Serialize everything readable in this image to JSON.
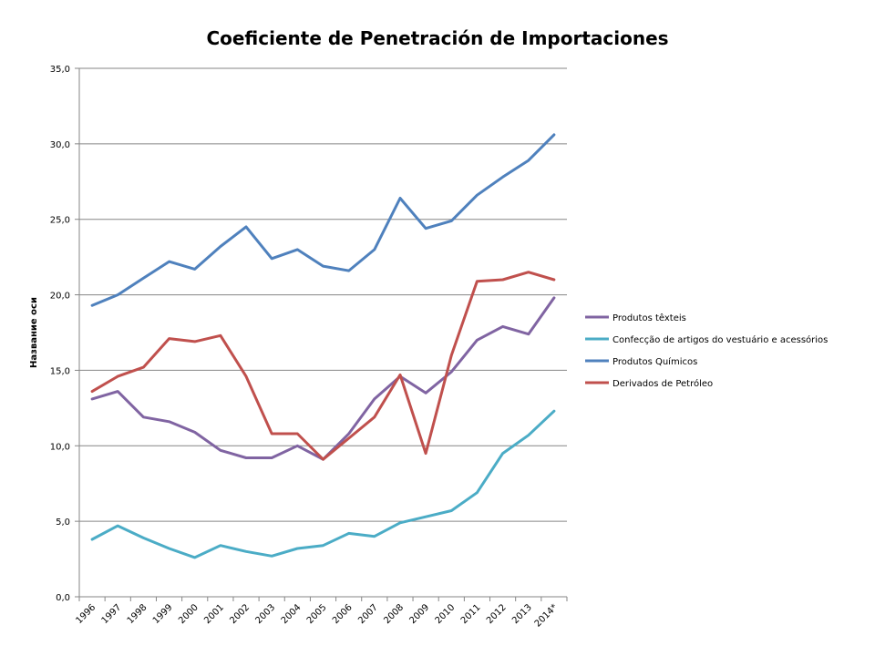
{
  "chart_data": {
    "type": "line",
    "title": "Coeficiente de Penetración de Importaciones",
    "xlabel": "",
    "ylabel": "Название оси",
    "ylim": [
      0,
      35
    ],
    "yticks": [
      "0,0",
      "5,0",
      "10,0",
      "15,0",
      "20,0",
      "25,0",
      "30,0",
      "35,0"
    ],
    "grid": true,
    "legend_position": "right",
    "categories": [
      "1996",
      "1997",
      "1998",
      "1999",
      "2000",
      "2001",
      "2002",
      "2003",
      "2004",
      "2005",
      "2006",
      "2007",
      "2008",
      "2009",
      "2010",
      "2011",
      "2012",
      "2013",
      "2014*"
    ],
    "series": [
      {
        "name": "Produtos têxteis",
        "color": "#8064A2",
        "values": [
          13.1,
          13.6,
          11.9,
          11.6,
          10.9,
          9.7,
          9.2,
          9.2,
          10.0,
          9.1,
          10.8,
          13.1,
          14.6,
          13.5,
          14.9,
          17.0,
          17.9,
          17.4,
          19.8
        ]
      },
      {
        "name": "Confecção de artigos do  vestuário e acessórios",
        "color": "#4BACC6",
        "values": [
          3.8,
          4.7,
          3.9,
          3.2,
          2.6,
          3.4,
          3.0,
          2.7,
          3.2,
          3.4,
          4.2,
          4.0,
          4.9,
          5.3,
          5.7,
          6.9,
          9.5,
          10.7,
          12.3
        ]
      },
      {
        "name": "Produtos Químicos",
        "color": "#4F81BD",
        "values": [
          19.3,
          20.0,
          21.1,
          22.2,
          21.7,
          23.2,
          24.5,
          22.4,
          23.0,
          21.9,
          21.6,
          23.0,
          26.4,
          24.4,
          24.9,
          26.6,
          27.8,
          28.9,
          30.6
        ]
      },
      {
        "name": "Derivados de Petróleo",
        "color": "#C0504D",
        "values": [
          13.6,
          14.6,
          15.2,
          17.1,
          16.9,
          17.3,
          14.6,
          10.8,
          10.8,
          9.1,
          10.5,
          11.9,
          14.7,
          9.5,
          16.0,
          20.9,
          21.0,
          21.5,
          21.0
        ]
      }
    ]
  }
}
